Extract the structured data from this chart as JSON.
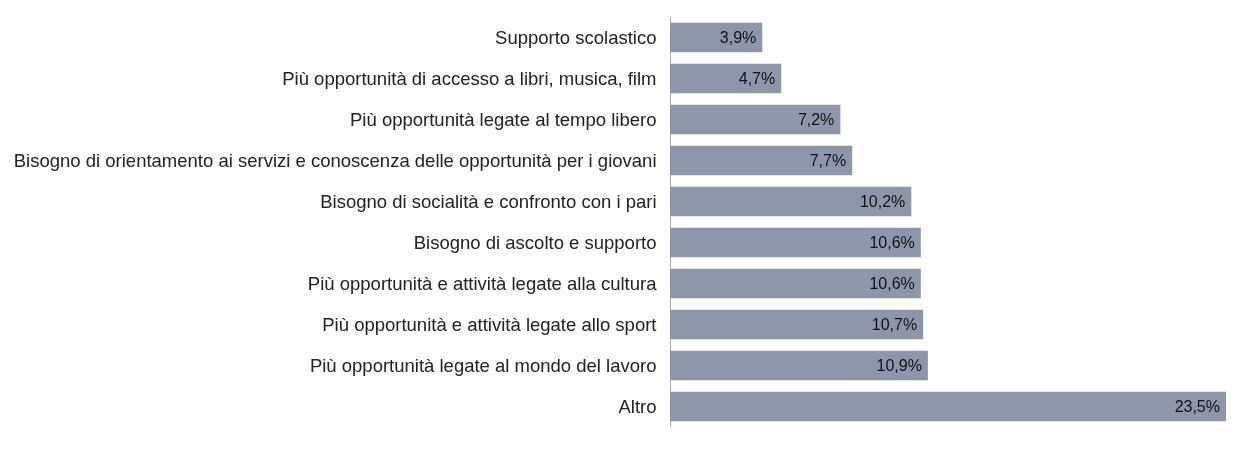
{
  "chart_data": {
    "type": "bar",
    "orientation": "horizontal",
    "categories": [
      "Supporto scolastico",
      "Più opportunità di accesso a libri, musica, film",
      "Più opportunità legate al tempo libero",
      "Bisogno di orientamento ai servizi e conoscenza delle opportunità per i giovani",
      "Bisogno di socialità e confronto con i pari",
      "Bisogno di ascolto e supporto",
      "Più opportunità e attività legate alla cultura",
      "Più opportunità e attività legate allo sport",
      "Più opportunità legate al mondo del lavoro",
      "Altro"
    ],
    "values": [
      3.9,
      4.7,
      7.2,
      7.7,
      10.2,
      10.6,
      10.6,
      10.7,
      10.9,
      23.5
    ],
    "value_labels": [
      "3,9%",
      "4,7%",
      "7,2%",
      "7,7%",
      "10,2%",
      "10,6%",
      "10,6%",
      "10,7%",
      "10,9%",
      "23,5%"
    ],
    "color": "#8e97aa",
    "tick_labels": "y"
  }
}
